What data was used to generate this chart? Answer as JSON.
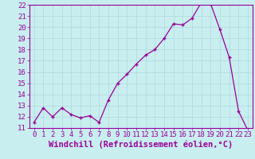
{
  "x": [
    0,
    1,
    2,
    3,
    4,
    5,
    6,
    7,
    8,
    9,
    10,
    11,
    12,
    13,
    14,
    15,
    16,
    17,
    18,
    19,
    20,
    21,
    22,
    23
  ],
  "y": [
    11.5,
    12.8,
    12.0,
    12.8,
    12.2,
    11.9,
    12.1,
    11.5,
    13.5,
    15.0,
    15.8,
    16.7,
    17.5,
    18.0,
    19.0,
    20.3,
    20.2,
    20.8,
    22.2,
    22.1,
    19.8,
    17.3,
    12.5,
    10.8
  ],
  "line_color": "#990099",
  "marker": "+",
  "bg_color": "#c8eef0",
  "grid_color": "#b0d8dc",
  "xlabel": "Windchill (Refroidissement éolien,°C)",
  "ylim": [
    11,
    22
  ],
  "xlim_min": -0.5,
  "xlim_max": 23.5,
  "yticks": [
    11,
    12,
    13,
    14,
    15,
    16,
    17,
    18,
    19,
    20,
    21,
    22
  ],
  "xticks": [
    0,
    1,
    2,
    3,
    4,
    5,
    6,
    7,
    8,
    9,
    10,
    11,
    12,
    13,
    14,
    15,
    16,
    17,
    18,
    19,
    20,
    21,
    22,
    23
  ],
  "tick_color": "#990099",
  "label_color": "#990099",
  "font_size": 6.5,
  "xlabel_fontsize": 7.5,
  "fig_width": 3.2,
  "fig_height": 2.0,
  "dpi": 100
}
